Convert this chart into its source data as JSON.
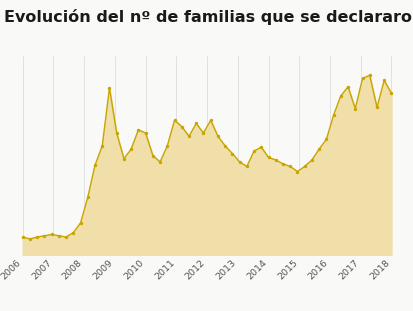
{
  "title": "Evolución del nº de familias que se declararon en quiebra",
  "title_fontsize": 11.5,
  "line_color": "#C8A500",
  "fill_color": "#F0DFA8",
  "marker_color": "#C8A500",
  "bg_color": "#F9F9F7",
  "grid_color": "#DDDDDD",
  "x_labels": [
    "2006",
    "2007",
    "2008",
    "2009",
    "2010",
    "2011",
    "2012",
    "2013",
    "2014",
    "2015",
    "2016",
    "2017",
    "2018"
  ],
  "quarterly_data": [
    28,
    25,
    28,
    30,
    32,
    30,
    28,
    35,
    50,
    90,
    140,
    170,
    260,
    190,
    150,
    165,
    195,
    190,
    155,
    145,
    170,
    210,
    200,
    185,
    205,
    190,
    210,
    185,
    170,
    158,
    145,
    138,
    162,
    168,
    152,
    148,
    142,
    138,
    130,
    138,
    148,
    165,
    180,
    218,
    248,
    262,
    228,
    275,
    280,
    230,
    272,
    252
  ],
  "ylim": [
    0,
    310
  ],
  "xlim_min": -0.2,
  "xlim_max": 12.6
}
